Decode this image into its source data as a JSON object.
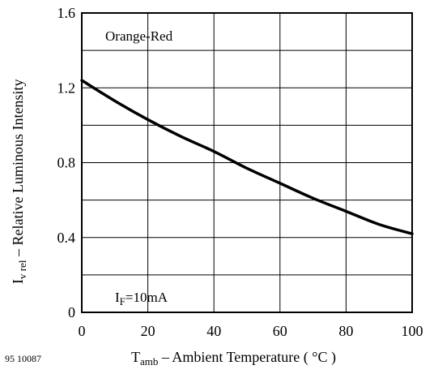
{
  "chart_data": {
    "type": "line",
    "xlabel": {
      "main": "T",
      "sub": "amb",
      "rest": " – Ambient Temperature ( °C )"
    },
    "ylabel": {
      "main": "I",
      "sub": "v rel",
      "rest": "  – Relative Luminous Intensity"
    },
    "xlim": [
      0,
      100
    ],
    "ylim": [
      0,
      1.6
    ],
    "xticks": [
      0,
      20,
      40,
      60,
      80,
      100
    ],
    "xtick_labels": [
      "0",
      "20",
      "40",
      "60",
      "80",
      "100"
    ],
    "yticks": [
      0,
      0.4,
      0.8,
      1.2,
      1.6
    ],
    "ytick_labels": [
      "0",
      "0.4",
      "0.8",
      "1.2",
      "1.6"
    ],
    "grid": true,
    "series": [
      {
        "name": "Orange-Red",
        "x": [
          0,
          10,
          20,
          30,
          40,
          50,
          60,
          70,
          80,
          90,
          100
        ],
        "y": [
          1.24,
          1.13,
          1.03,
          0.94,
          0.86,
          0.77,
          0.69,
          0.61,
          0.54,
          0.47,
          0.42
        ]
      }
    ],
    "annotations": [
      {
        "text": "Orange-Red"
      },
      {
        "main": "I",
        "sub": "F",
        "rest": "=10mA"
      }
    ],
    "figure_id": "95 10087"
  }
}
